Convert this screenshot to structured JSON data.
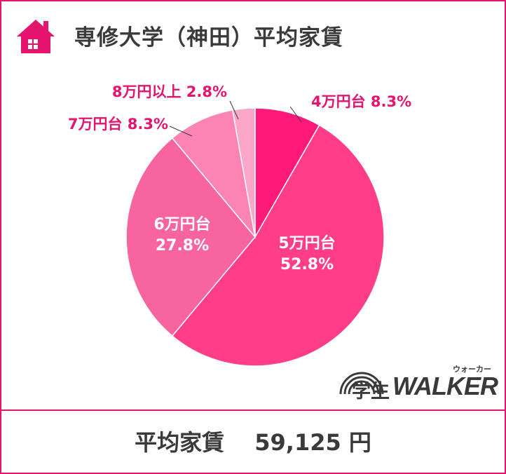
{
  "header": {
    "title": "専修大学（神田）平均家賃",
    "icon": "house-icon"
  },
  "chart_data": {
    "type": "pie",
    "title": "専修大学（神田）平均家賃",
    "start_angle_deg": 0,
    "direction": "clockwise",
    "slices": [
      {
        "label": "4万円台",
        "value": 8.3,
        "value_label": "8.3%",
        "color": "#ff1a7a"
      },
      {
        "label": "5万円台",
        "value": 52.8,
        "value_label": "52.8%",
        "color": "#ff3d88"
      },
      {
        "label": "6万円台",
        "value": 27.8,
        "value_label": "27.8%",
        "color": "#f7649f"
      },
      {
        "label": "7万円台",
        "value": 8.3,
        "value_label": "8.3%",
        "color": "#fc84b2"
      },
      {
        "label": "8万円以上",
        "value": 2.8,
        "value_label": "2.8%",
        "color": "#fca6c8"
      }
    ]
  },
  "footer": {
    "label": "平均家賃",
    "value": "59,125 円",
    "text": "平均家賃　 59,125 円"
  },
  "logo": {
    "kanji": "学生",
    "name": "WALKER",
    "kana": "ウォーカー"
  },
  "colors": {
    "accent": "#e4146f",
    "text_dark": "#3a3a3a",
    "label_pink": "#e4146f"
  }
}
